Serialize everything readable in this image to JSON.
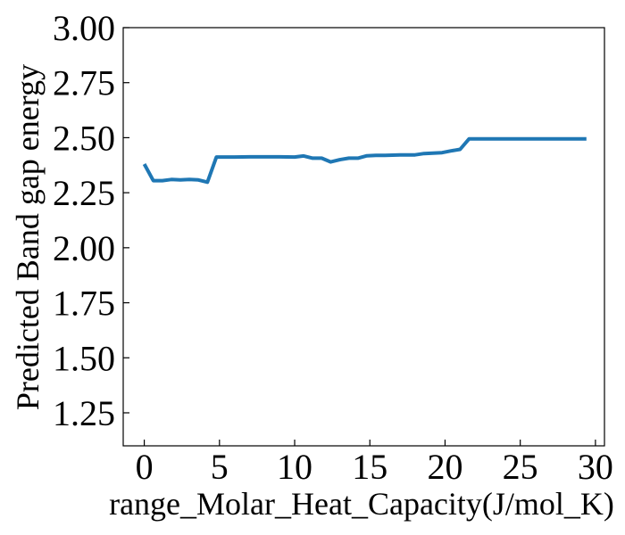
{
  "chart_data": {
    "type": "line",
    "title": "",
    "xlabel": "range_Molar_Heat_Capacity(J/mol_K)",
    "ylabel": "Predicted Band gap energy",
    "xlim": [
      -1.4,
      30.6
    ],
    "ylim": [
      1.1,
      3.0
    ],
    "xticks": [
      0,
      5,
      10,
      15,
      20,
      25,
      30
    ],
    "xtick_labels": [
      "0",
      "5",
      "10",
      "15",
      "20",
      "25",
      "30"
    ],
    "yticks": [
      1.25,
      1.5,
      1.75,
      2.0,
      2.25,
      2.5,
      2.75,
      3.0
    ],
    "ytick_labels": [
      "1.25",
      "1.50",
      "1.75",
      "2.00",
      "2.25",
      "2.50",
      "2.75",
      "3.00"
    ],
    "grid": false,
    "legend": "none",
    "series": [
      {
        "color": "#1f77b4",
        "x": [
          0.0,
          0.6,
          1.2,
          1.8,
          2.4,
          3.0,
          3.6,
          4.2,
          4.8,
          5.4,
          6.0,
          7.0,
          8.0,
          9.0,
          10.0,
          10.6,
          11.2,
          11.8,
          12.4,
          13.0,
          13.6,
          14.2,
          14.8,
          15.4,
          16.0,
          17.0,
          18.0,
          18.6,
          19.2,
          19.8,
          20.4,
          21.0,
          21.6,
          22.2,
          23.0,
          24.0,
          25.0,
          26.0,
          27.0,
          28.0,
          29.4
        ],
        "y": [
          2.38,
          2.305,
          2.305,
          2.31,
          2.308,
          2.31,
          2.308,
          2.298,
          2.412,
          2.412,
          2.412,
          2.413,
          2.413,
          2.413,
          2.412,
          2.417,
          2.407,
          2.407,
          2.39,
          2.4,
          2.407,
          2.407,
          2.418,
          2.42,
          2.42,
          2.422,
          2.422,
          2.428,
          2.43,
          2.432,
          2.44,
          2.447,
          2.495,
          2.495,
          2.495,
          2.495,
          2.495,
          2.495,
          2.495,
          2.495,
          2.495
        ]
      }
    ]
  }
}
